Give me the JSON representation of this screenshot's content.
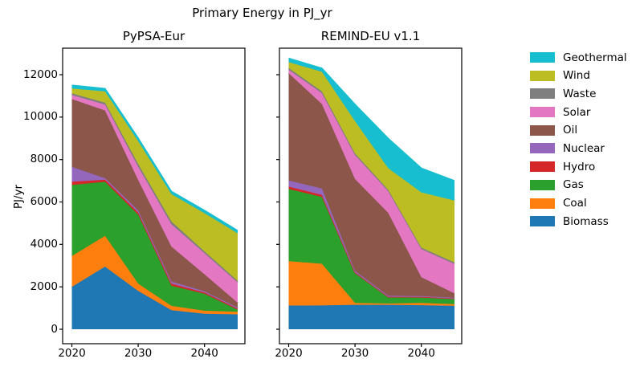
{
  "figure": {
    "title": "Primary Energy in PJ_yr"
  },
  "legend": {
    "items": [
      {
        "label": "Geothermal",
        "color": "#17becf"
      },
      {
        "label": "Wind",
        "color": "#bcbd22"
      },
      {
        "label": "Waste",
        "color": "#7f7f7f"
      },
      {
        "label": "Solar",
        "color": "#e377c2"
      },
      {
        "label": "Oil",
        "color": "#8c564b"
      },
      {
        "label": "Nuclear",
        "color": "#9467bd"
      },
      {
        "label": "Hydro",
        "color": "#d62728"
      },
      {
        "label": "Gas",
        "color": "#2ca02c"
      },
      {
        "label": "Coal",
        "color": "#ff7f0e"
      },
      {
        "label": "Biomass",
        "color": "#1f77b4"
      }
    ]
  },
  "chart_data": [
    {
      "type": "area",
      "title": "PyPSA-Eur",
      "ylabel": "PJ/yr",
      "x": [
        2020,
        2025,
        2030,
        2035,
        2040,
        2045
      ],
      "xticks": [
        2020,
        2030,
        2040
      ],
      "yticks": [
        0,
        2000,
        4000,
        6000,
        8000,
        10000,
        12000
      ],
      "ylim": [
        -680,
        13250
      ],
      "xlim": [
        2018.6,
        2046.2
      ],
      "grid": false,
      "ytick_labels_visible": true,
      "stack_order": "bottom-to-top",
      "series": [
        {
          "name": "Biomass",
          "color": "#1f77b4",
          "values": [
            2000,
            2950,
            1800,
            900,
            730,
            700
          ]
        },
        {
          "name": "Coal",
          "color": "#ff7f0e",
          "values": [
            1450,
            1450,
            350,
            200,
            140,
            120
          ]
        },
        {
          "name": "Gas",
          "color": "#2ca02c",
          "values": [
            3350,
            2550,
            3250,
            950,
            800,
            100
          ]
        },
        {
          "name": "Hydro",
          "color": "#d62728",
          "values": [
            150,
            100,
            100,
            100,
            60,
            50
          ]
        },
        {
          "name": "Nuclear",
          "color": "#9467bd",
          "values": [
            700,
            70,
            100,
            100,
            60,
            50
          ]
        },
        {
          "name": "Oil",
          "color": "#8c564b",
          "values": [
            3200,
            3190,
            1430,
            1650,
            800,
            230
          ]
        },
        {
          "name": "Solar",
          "color": "#e377c2",
          "values": [
            190,
            280,
            630,
            1050,
            1000,
            950
          ]
        },
        {
          "name": "Waste",
          "color": "#7f7f7f",
          "values": [
            80,
            90,
            130,
            130,
            80,
            80
          ]
        },
        {
          "name": "Wind",
          "color": "#bcbd22",
          "values": [
            230,
            530,
            1070,
            1290,
            1800,
            2240
          ]
        },
        {
          "name": "Geothermal",
          "color": "#17becf",
          "values": [
            150,
            130,
            150,
            130,
            130,
            130
          ]
        }
      ]
    },
    {
      "type": "area",
      "title": "REMIND-EU v1.1",
      "ylabel": "",
      "x": [
        2020,
        2025,
        2030,
        2035,
        2040,
        2045
      ],
      "xticks": [
        2020,
        2030,
        2040
      ],
      "yticks": [
        0,
        2000,
        4000,
        6000,
        8000,
        10000,
        12000
      ],
      "ylim": [
        -680,
        13250
      ],
      "xlim": [
        2018.6,
        2046.2
      ],
      "grid": false,
      "ytick_labels_visible": false,
      "stack_order": "bottom-to-top",
      "series": [
        {
          "name": "Biomass",
          "color": "#1f77b4",
          "values": [
            1115,
            1120,
            1150,
            1150,
            1130,
            1100
          ]
        },
        {
          "name": "Coal",
          "color": "#ff7f0e",
          "values": [
            2095,
            1965,
            90,
            60,
            110,
            80
          ]
        },
        {
          "name": "Gas",
          "color": "#2ca02c",
          "values": [
            3400,
            3150,
            1400,
            290,
            255,
            250
          ]
        },
        {
          "name": "Hydro",
          "color": "#d62728",
          "values": [
            110,
            100,
            40,
            30,
            25,
            20
          ]
        },
        {
          "name": "Nuclear",
          "color": "#9467bd",
          "values": [
            290,
            300,
            70,
            50,
            40,
            30
          ]
        },
        {
          "name": "Oil",
          "color": "#8c564b",
          "values": [
            5060,
            3985,
            4330,
            3910,
            890,
            210
          ]
        },
        {
          "name": "Solar",
          "color": "#e377c2",
          "values": [
            160,
            510,
            1130,
            1020,
            1330,
            1385
          ]
        },
        {
          "name": "Waste",
          "color": "#7f7f7f",
          "values": [
            80,
            85,
            75,
            60,
            65,
            70
          ]
        },
        {
          "name": "Wind",
          "color": "#bcbd22",
          "values": [
            280,
            920,
            1525,
            1020,
            2605,
            2925
          ]
        },
        {
          "name": "Geothermal",
          "color": "#17becf",
          "values": [
            180,
            170,
            790,
            1410,
            1140,
            930
          ]
        }
      ]
    }
  ]
}
